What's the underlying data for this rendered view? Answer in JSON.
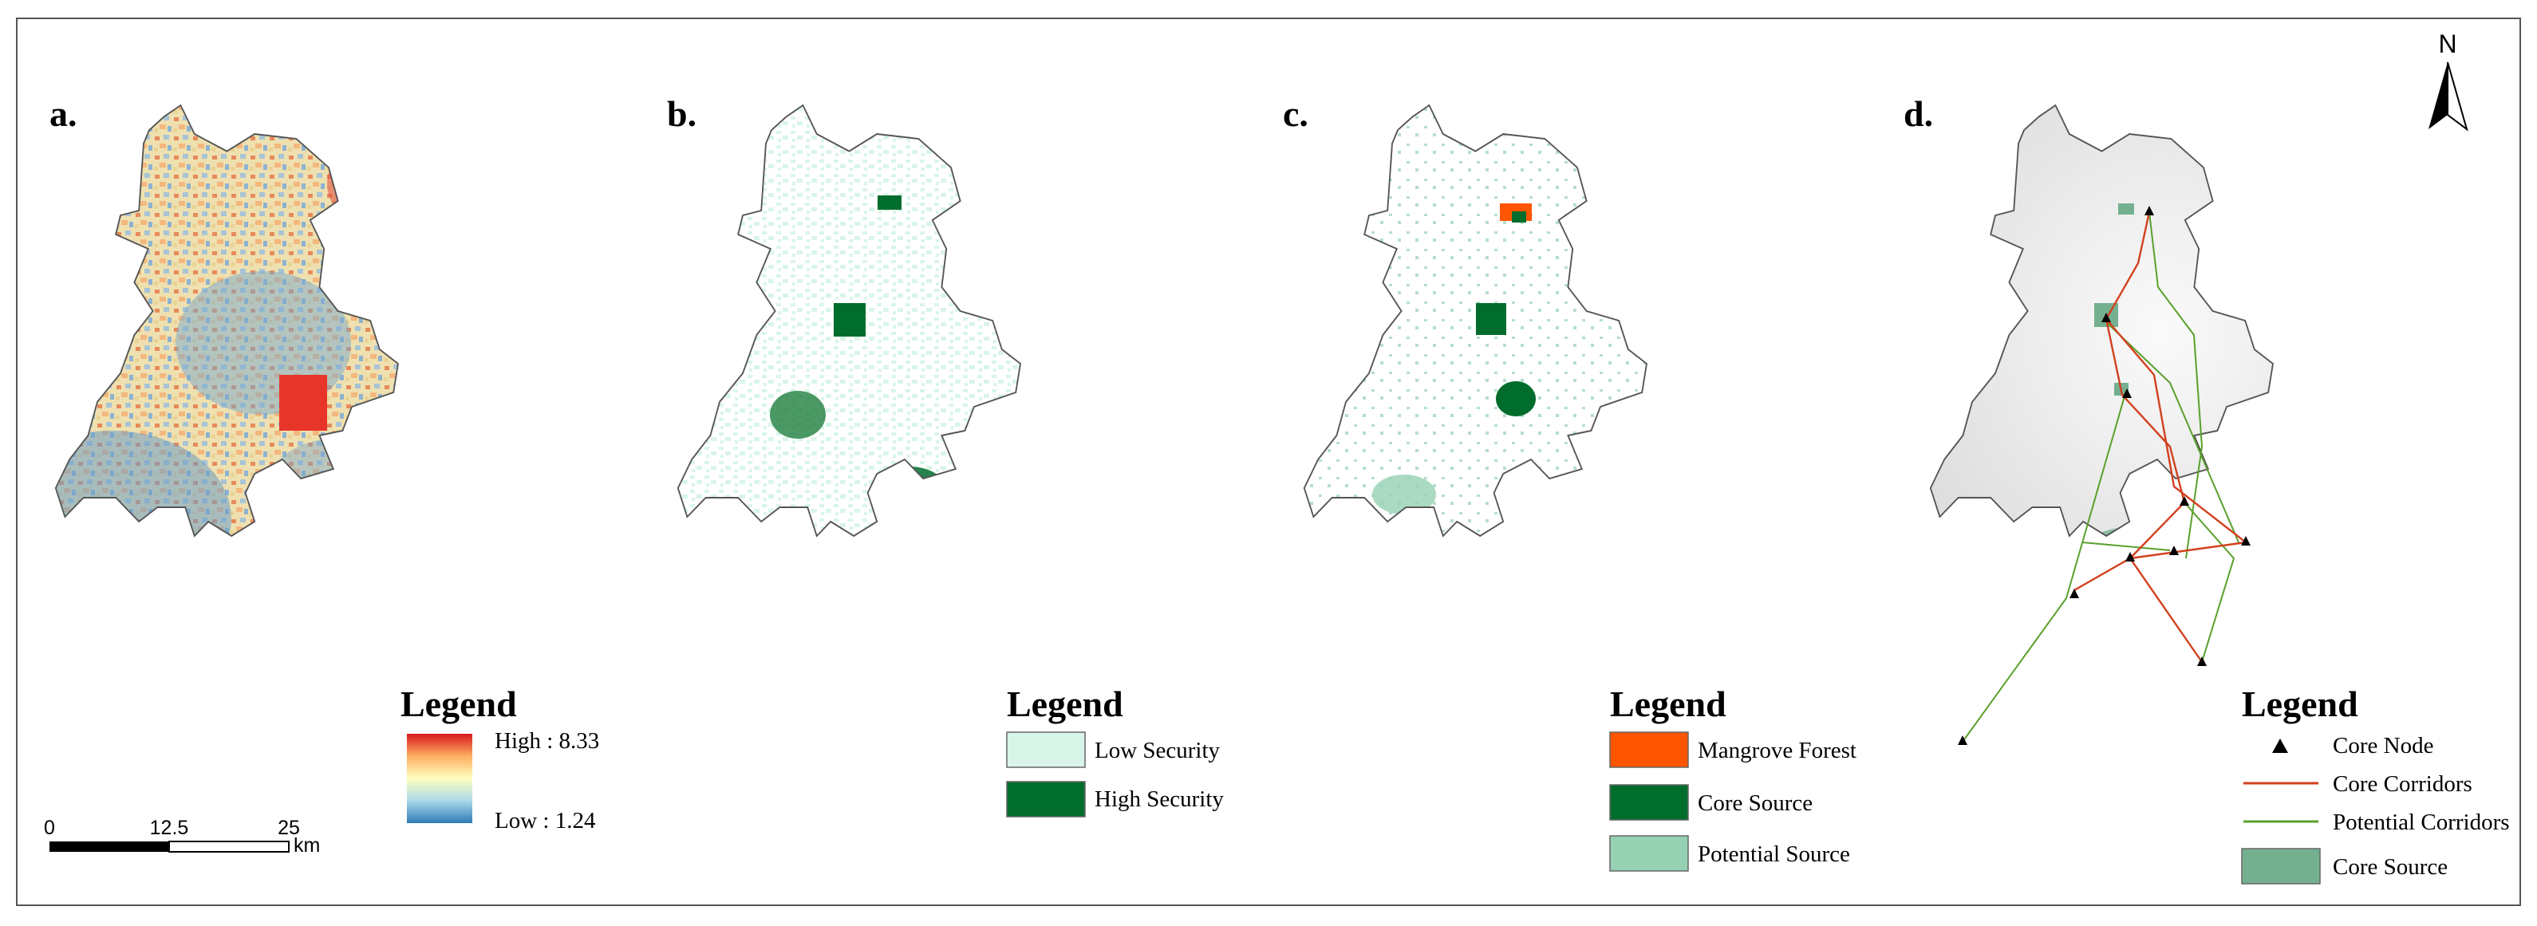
{
  "panels": [
    {
      "id": "a",
      "label": "a."
    },
    {
      "id": "b",
      "label": "b."
    },
    {
      "id": "c",
      "label": "c."
    },
    {
      "id": "d",
      "label": "d."
    }
  ],
  "north_arrow": {
    "letter": "N"
  },
  "legend_a": {
    "title": "Legend",
    "high": "High : 8.33",
    "low": "Low : 1.24",
    "ramp_colors": [
      "#d7191c",
      "#fdae61",
      "#ffffbf",
      "#abd9e9",
      "#2c7bb6"
    ]
  },
  "scalebar": {
    "ticks": [
      "0",
      "12.5",
      "25"
    ],
    "unit": "km"
  },
  "legend_b": {
    "title": "Legend",
    "items": [
      {
        "label": "Low Security",
        "color": "#d9f5ea"
      },
      {
        "label": "High Security",
        "color": "#006d2c"
      }
    ]
  },
  "legend_c": {
    "title": "Legend",
    "items": [
      {
        "label": "Mangrove Forest",
        "color": "#ff5500"
      },
      {
        "label": "Core Source",
        "color": "#006d2c"
      },
      {
        "label": "Potential Source",
        "color": "#96d1b4"
      }
    ]
  },
  "legend_d": {
    "title": "Legend",
    "items": [
      {
        "label": "Core Node",
        "symbol": "triangle-icon"
      },
      {
        "label": "Core Corridors",
        "color": "#d2401e"
      },
      {
        "label": "Potential Corridors",
        "color": "#5aa02c"
      },
      {
        "label": "Core Source",
        "color": "#74b08f"
      }
    ]
  }
}
